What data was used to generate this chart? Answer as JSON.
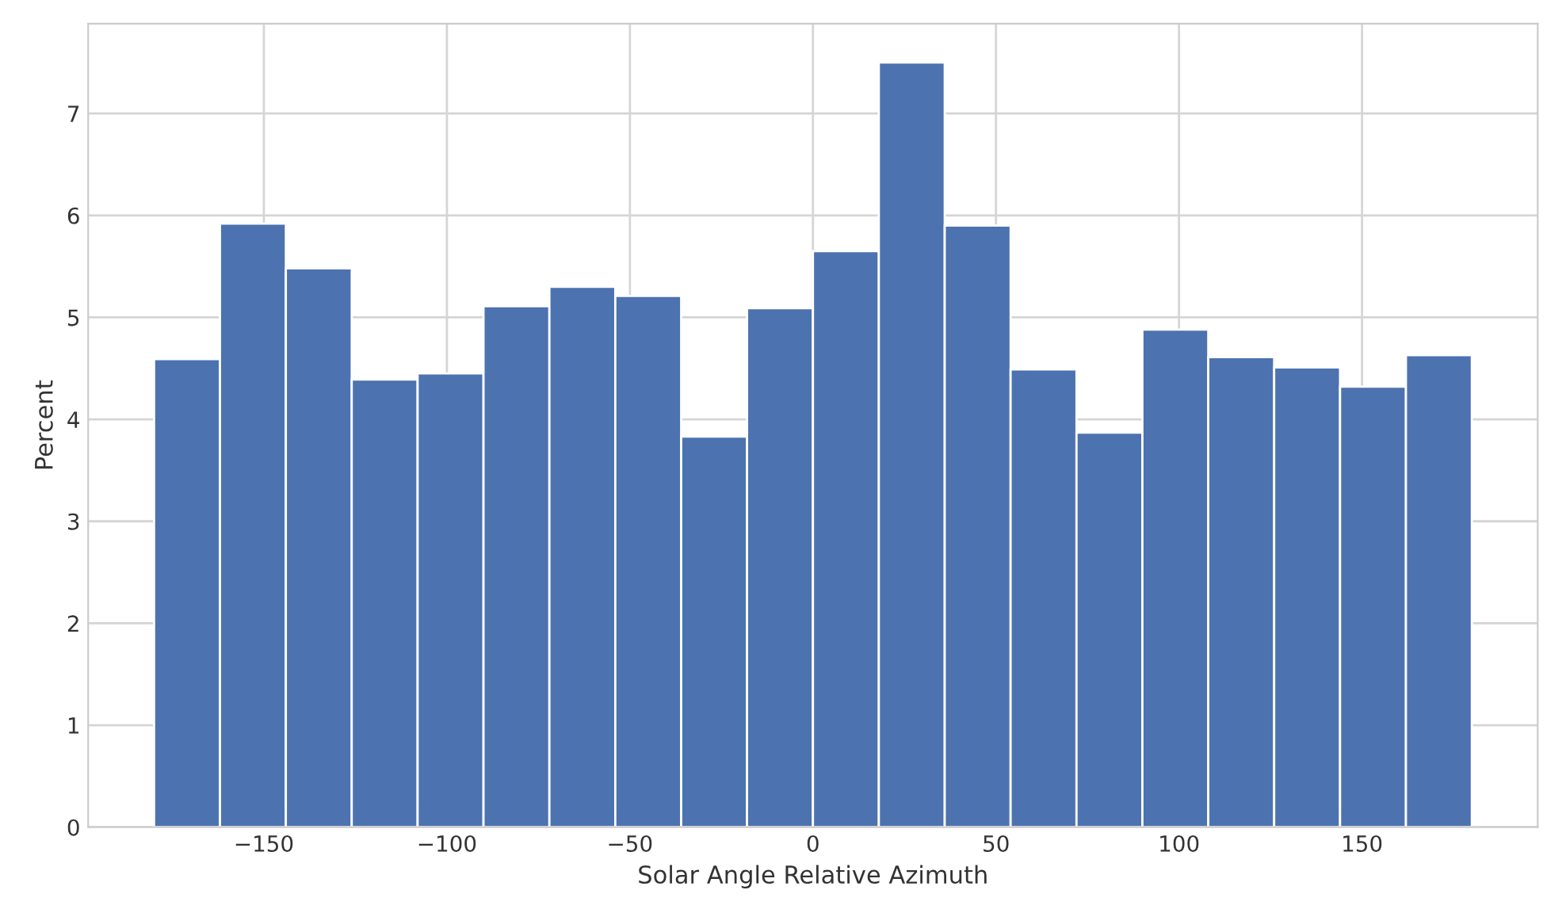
{
  "chart_data": {
    "type": "histogram",
    "xlabel": "Solar Angle Relative Azimuth",
    "ylabel": "Percent",
    "bins": [
      -180,
      -162,
      -144,
      -126,
      -108,
      -90,
      -72,
      -54,
      -36,
      -18,
      0,
      18,
      36,
      54,
      72,
      90,
      108,
      126,
      144,
      162,
      180
    ],
    "values": [
      4.59,
      5.92,
      5.48,
      4.39,
      4.45,
      5.11,
      5.3,
      5.21,
      3.83,
      5.09,
      5.65,
      7.5,
      5.9,
      4.49,
      3.87,
      4.88,
      4.61,
      4.51,
      4.32,
      4.63
    ],
    "color": "#4c72b0",
    "xlim": [
      -198,
      198
    ],
    "xticks": [
      {
        "value": -150,
        "label": "−150"
      },
      {
        "value": -100,
        "label": "−100"
      },
      {
        "value": -50,
        "label": "−50"
      },
      0,
      50,
      100,
      150
    ],
    "ylim": [
      0,
      7.88
    ],
    "yticks": [
      0,
      1,
      2,
      3,
      4,
      5,
      6,
      7
    ],
    "grid": true
  }
}
